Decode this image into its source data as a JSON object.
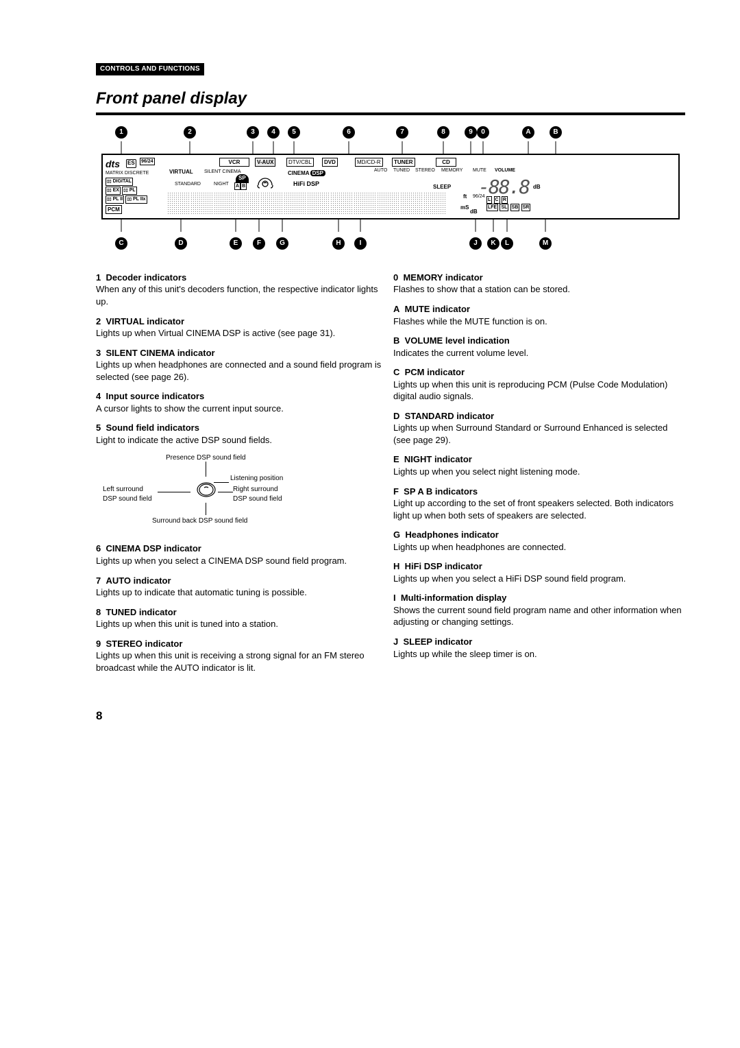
{
  "section_header": "CONTROLS AND FUNCTIONS",
  "page_title": "Front panel display",
  "page_number": "8",
  "top_callouts": [
    "1",
    "2",
    "3",
    "4",
    "5",
    "6",
    "7",
    "8",
    "9",
    "0",
    "A",
    "B"
  ],
  "bottom_callouts": [
    "C",
    "D",
    "E",
    "F",
    "G",
    "H",
    "I",
    "J",
    "K",
    "L",
    "M"
  ],
  "display": {
    "inputs": [
      "VCR",
      "V-AUX",
      "DTV/CBL",
      "DVD",
      "MD/CD-R",
      "TUNER",
      "CD"
    ],
    "row_small": [
      "AUTO",
      "TUNED",
      "STEREO",
      "MEMORY",
      "MUTE",
      "VOLUME"
    ],
    "row_mid": [
      "VIRTUAL",
      "SILENT CINEMA"
    ],
    "row_mid2": [
      "STANDARD",
      "NIGHT",
      "SP",
      "A",
      "B",
      "HiFi DSP",
      "CINEMA DSP",
      "SLEEP"
    ],
    "decoder_block": {
      "dts": "dts",
      "es": "ES",
      "n9624": "96/24",
      "matrix": "MATRIX DISCRETE",
      "dig": "DIGITAL",
      "ex": "EX",
      "pl": "PL",
      "plii": "PL II",
      "pliix": "PL IIx",
      "pcm": "PCM"
    },
    "ft": "ft",
    "ms": "mS",
    "db": "dB",
    "n9624s": "96/24",
    "speakers": [
      "L",
      "C",
      "R",
      "LFE",
      "SL",
      "SB",
      "SR"
    ],
    "seg": "-88.8",
    "headphone_icon": "headphones-icon"
  },
  "sound_field_diagram": {
    "presence": "Presence DSP sound field",
    "listening": "Listening position",
    "left": "Left surround DSP sound field",
    "right": "Right surround DSP sound field",
    "back": "Surround back DSP sound field"
  },
  "left_items": [
    {
      "n": "1",
      "t": "Decoder indicators",
      "b": "When any of this unit's decoders function, the respective indicator lights up."
    },
    {
      "n": "2",
      "t": "VIRTUAL indicator",
      "b": "Lights up when Virtual CINEMA DSP is active (see page 31)."
    },
    {
      "n": "3",
      "t": "SILENT CINEMA indicator",
      "b": "Lights up when headphones are connected and a sound field program is selected (see page 26)."
    },
    {
      "n": "4",
      "t": "Input source indicators",
      "b": "A cursor lights to show the current input source."
    },
    {
      "n": "5",
      "t": "Sound field indicators",
      "b": "Light to indicate the active DSP sound fields."
    },
    {
      "n": "6",
      "t": "CINEMA DSP indicator",
      "b": "Lights up when you select a CINEMA DSP sound field program."
    },
    {
      "n": "7",
      "t": "AUTO indicator",
      "b": "Lights up to indicate that automatic tuning is possible."
    },
    {
      "n": "8",
      "t": "TUNED indicator",
      "b": "Lights up when this unit is tuned into a station."
    },
    {
      "n": "9",
      "t": "STEREO indicator",
      "b": "Lights up when this unit is receiving a strong signal for an FM stereo broadcast while the AUTO indicator is lit."
    }
  ],
  "right_items": [
    {
      "n": "0",
      "t": "MEMORY indicator",
      "b": "Flashes to show that a station can be stored."
    },
    {
      "n": "A",
      "t": "MUTE indicator",
      "b": "Flashes while the MUTE function is on."
    },
    {
      "n": "B",
      "t": "VOLUME level indication",
      "b": "Indicates the current volume level."
    },
    {
      "n": "C",
      "t": "PCM indicator",
      "b": "Lights up when this unit is reproducing PCM (Pulse Code Modulation) digital audio signals."
    },
    {
      "n": "D",
      "t": "STANDARD indicator",
      "b": "Lights up when Surround Standard or Surround Enhanced is selected (see page 29)."
    },
    {
      "n": "E",
      "t": "NIGHT indicator",
      "b": "Lights up when you select night listening mode."
    },
    {
      "n": "F",
      "t": "SP A B indicators",
      "b": "Light up according to the set of front speakers selected. Both indicators light up when both sets of speakers are selected."
    },
    {
      "n": "G",
      "t": "Headphones indicator",
      "b": "Lights up when headphones are connected."
    },
    {
      "n": "H",
      "t": "HiFi DSP indicator",
      "b": "Lights up when you select a HiFi DSP sound field program."
    },
    {
      "n": "I",
      "t": "Multi-information display",
      "b": "Shows the current sound field program name and other information when adjusting or changing settings."
    },
    {
      "n": "J",
      "t": "SLEEP indicator",
      "b": "Lights up while the sleep timer is on."
    }
  ]
}
